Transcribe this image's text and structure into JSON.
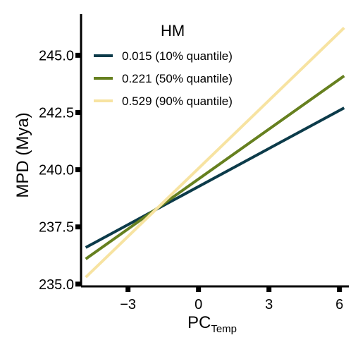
{
  "chart_data": {
    "type": "line",
    "xlabel": "PC",
    "xlabel_subscript": "Temp",
    "ylabel": "MPD (Mya)",
    "xlim": [
      -5.0,
      6.4
    ],
    "ylim": [
      234.9,
      246.8
    ],
    "xticks": [
      -3,
      0,
      3,
      6
    ],
    "xtick_labels": [
      "−3",
      "0",
      "3",
      "6"
    ],
    "yticks": [
      235.0,
      237.5,
      240.0,
      242.5,
      245.0
    ],
    "ytick_labels": [
      "235.0",
      "237.5",
      "240.0",
      "242.5",
      "245.0"
    ],
    "grid": false,
    "legend_title": "HM",
    "legend_position": "top-left",
    "series": [
      {
        "name": "0.015 (10% quantile)",
        "color": "#0c3b4a",
        "x": [
          -4.8,
          6.2
        ],
        "y": [
          236.6,
          242.7
        ]
      },
      {
        "name": "0.221 (50% quantile)",
        "color": "#66801f",
        "x": [
          -4.8,
          6.2
        ],
        "y": [
          236.1,
          244.1
        ]
      },
      {
        "name": "0.529 (90% quantile)",
        "color": "#f7e3a1",
        "x": [
          -4.8,
          6.2
        ],
        "y": [
          235.3,
          246.2
        ]
      }
    ]
  }
}
